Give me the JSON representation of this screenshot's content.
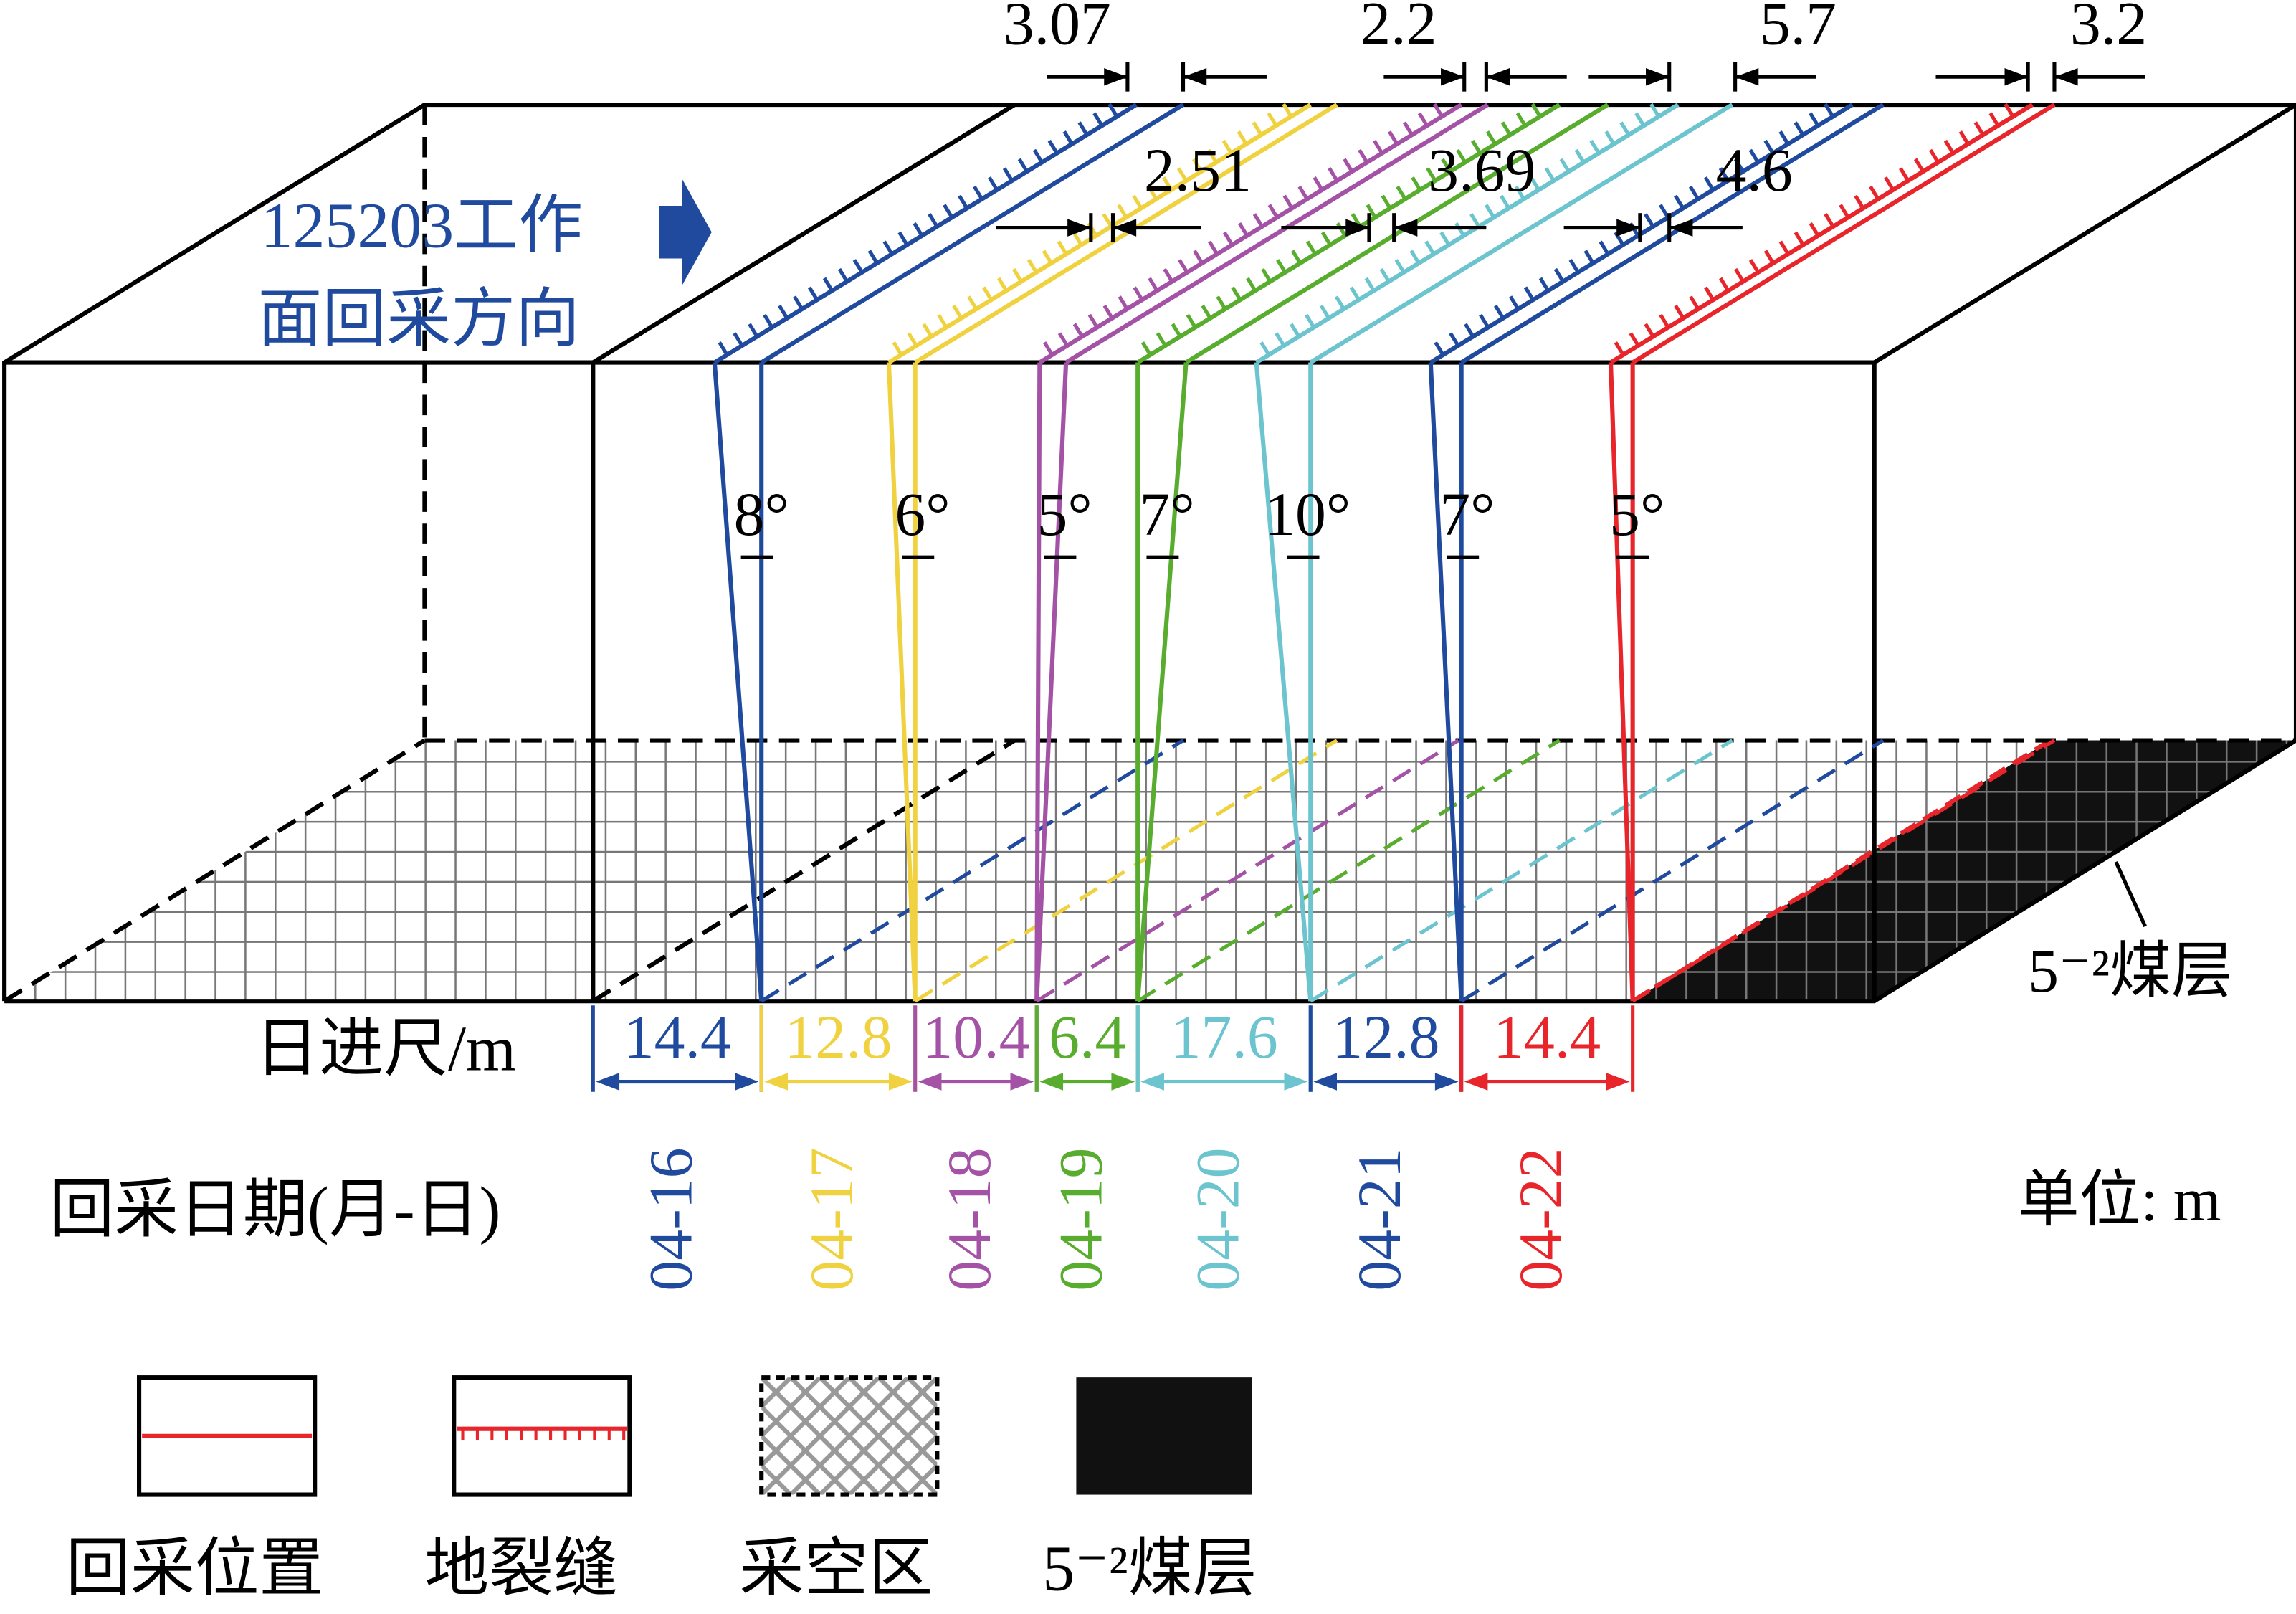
{
  "direction_label": [
    "125203工作",
    "面回采方向"
  ],
  "top_gaps": [
    3.07,
    2.2,
    5.7,
    3.2
  ],
  "mid_gaps": [
    2.51,
    3.69,
    4.6
  ],
  "advance_label": "日进尺/m",
  "date_label": "回采日期(月-日)",
  "unit_label": "单位: m",
  "seam_label": "5⁻²煤层",
  "segments": [
    {
      "date": "04-16",
      "advance": 14.4,
      "angle": "8°",
      "color": "#1f4a9e"
    },
    {
      "date": "04-17",
      "advance": 12.8,
      "angle": "6°",
      "color": "#f0d240"
    },
    {
      "date": "04-18",
      "advance": 10.4,
      "angle": "5°",
      "color": "#a352a6"
    },
    {
      "date": "04-19",
      "advance": 6.4,
      "angle": "7°",
      "color": "#58ad2e"
    },
    {
      "date": "04-20",
      "advance": 17.6,
      "angle": "10°",
      "color": "#6cc4cf"
    },
    {
      "date": "04-21",
      "advance": 12.8,
      "angle": "7°",
      "color": "#1f4a9e"
    },
    {
      "date": "04-22",
      "advance": 14.4,
      "angle": "5°",
      "color": "#e8252a"
    }
  ],
  "legend": [
    "回采位置",
    "地裂缝",
    "采空区",
    "5⁻²煤层"
  ]
}
